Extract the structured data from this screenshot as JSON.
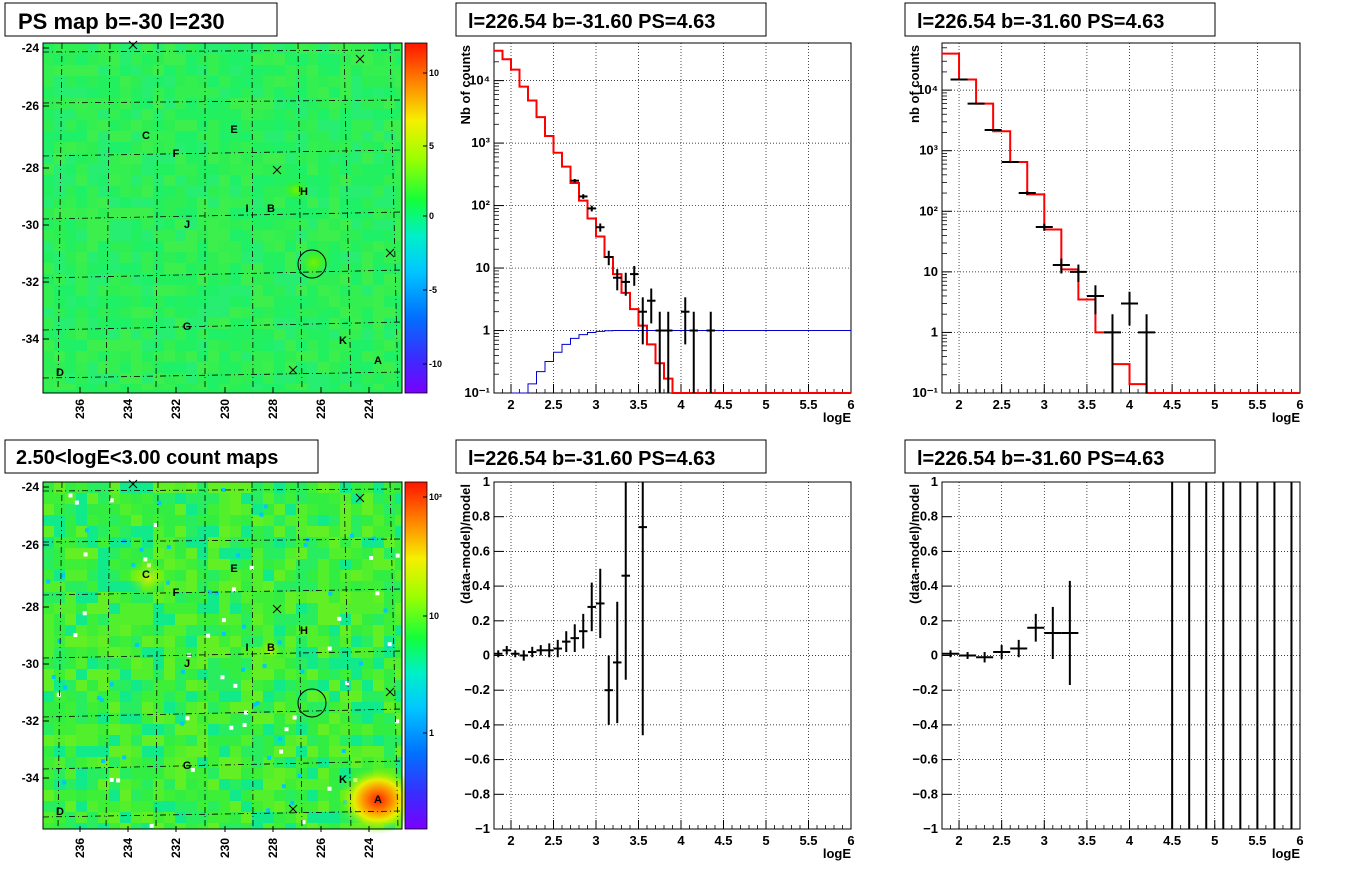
{
  "map_top": {
    "title": "PS map b=-30 l=230",
    "xticks": [
      "236",
      "234",
      "232",
      "230",
      "228",
      "226",
      "224"
    ],
    "yticks": [
      "-24",
      "-26",
      "-28",
      "-30",
      "-32",
      "-34"
    ],
    "palette_labels": [
      "10",
      "5",
      "0",
      "-5",
      "-10"
    ],
    "sources": [
      "C",
      "E",
      "F",
      "H",
      "I",
      "B",
      "J",
      "G",
      "K",
      "A",
      "D"
    ]
  },
  "map_bottom": {
    "title": "2.50<logE<3.00 count maps",
    "xticks": [
      "236",
      "234",
      "232",
      "230",
      "228",
      "226",
      "224"
    ],
    "yticks": [
      "-24",
      "-26",
      "-28",
      "-30",
      "-32",
      "-34"
    ],
    "palette_labels": [
      "10²",
      "10",
      "1"
    ],
    "sources": [
      "C",
      "E",
      "F",
      "H",
      "I",
      "B",
      "J",
      "G",
      "K",
      "A",
      "D"
    ]
  },
  "chart_data": [
    {
      "type": "line",
      "title": "l=226.54 b=-31.60 PS=4.63",
      "xlabel": "logE",
      "ylabel": "Nb of counts",
      "yscale": "log",
      "xlim": [
        1.8,
        6
      ],
      "ylim": [
        0.1,
        40000
      ],
      "xticks": [
        "2",
        "2.5",
        "3",
        "3.5",
        "4",
        "4.5",
        "5",
        "5.5",
        "6"
      ],
      "yticks": [
        "10⁻¹",
        "1",
        "10",
        "10²",
        "10³",
        "10⁴"
      ],
      "grid": true,
      "series": [
        {
          "kind": "step",
          "edges": [
            1.8,
            1.9,
            2.0,
            2.1,
            2.2,
            2.3,
            2.4,
            2.5,
            2.6,
            2.7,
            2.8,
            2.9,
            3.0,
            3.1,
            3.2,
            3.3,
            3.4,
            3.5,
            3.6,
            3.7,
            3.8,
            3.9,
            4.0,
            4.1,
            6.0
          ],
          "values": [
            30000,
            22000,
            15000,
            8000,
            4800,
            2600,
            1300,
            700,
            420,
            230,
            120,
            62,
            32,
            15,
            8,
            4,
            2.2,
            1.2,
            0.6,
            0.3,
            0.17,
            0.1,
            0.1,
            0.1
          ],
          "color": "#ff0000"
        },
        {
          "kind": "step",
          "edges": [
            2.0,
            2.1,
            2.2,
            2.3,
            2.4,
            2.5,
            2.6,
            2.7,
            2.8,
            2.9,
            3.0,
            3.1,
            3.2,
            6.0
          ],
          "values": [
            0.05,
            0.09,
            0.14,
            0.22,
            0.32,
            0.45,
            0.6,
            0.75,
            0.86,
            0.93,
            0.97,
            0.99,
            1.0
          ],
          "color": "#0000cc"
        },
        {
          "kind": "errorbar",
          "x": [
            2.75,
            2.85,
            2.95,
            3.05,
            3.15,
            3.25,
            3.35,
            3.45,
            3.55,
            3.65,
            3.75,
            3.85,
            4.05,
            4.15,
            4.35
          ],
          "y": [
            250,
            140,
            90,
            45,
            15,
            7,
            6,
            8,
            2,
            3,
            1,
            1,
            2,
            1,
            1
          ],
          "yerr": [
            [
              16,
              12,
              9.5,
              6.7,
              3.9,
              2.6,
              2.4,
              2.8,
              1.4,
              1.7,
              0.9,
              0.9,
              1.4,
              0.9,
              0.9
            ],
            [
              16,
              12,
              9.5,
              6.7,
              3.9,
              2.6,
              2.4,
              2.8,
              1.4,
              1.7,
              1,
              1,
              1.4,
              1,
              1
            ]
          ],
          "xerr": 0.05,
          "color": "#000000"
        }
      ]
    },
    {
      "type": "line",
      "title": "l=226.54 b=-31.60 PS=4.63",
      "xlabel": "logE",
      "ylabel": "nb of counts",
      "yscale": "log",
      "xlim": [
        1.8,
        6
      ],
      "ylim": [
        0.1,
        60000
      ],
      "xticks": [
        "2",
        "2.5",
        "3",
        "3.5",
        "4",
        "4.5",
        "5",
        "5.5",
        "6"
      ],
      "yticks": [
        "10⁻¹",
        "1",
        "10",
        "10²",
        "10³",
        "10⁴"
      ],
      "grid": true,
      "series": [
        {
          "kind": "step",
          "edges": [
            1.8,
            2.0,
            2.2,
            2.4,
            2.6,
            2.8,
            3.0,
            3.2,
            3.4,
            3.6,
            3.8,
            4.0,
            4.2,
            6.0
          ],
          "values": [
            40000,
            15000,
            6000,
            2100,
            650,
            190,
            50,
            11,
            3.5,
            1,
            0.3,
            0.14,
            0.1
          ],
          "color": "#ff0000"
        },
        {
          "kind": "errorbar",
          "x": [
            2.0,
            2.2,
            2.4,
            2.6,
            2.8,
            3.0,
            3.2,
            3.4,
            3.6,
            3.8,
            4.0,
            4.2
          ],
          "y": [
            15000,
            6000,
            2200,
            650,
            200,
            55,
            13,
            10,
            4,
            1,
            3,
            1
          ],
          "yerr": [
            [
              122,
              77,
              47,
              25,
              14,
              7.4,
              3.6,
              3.2,
              2,
              0.9,
              1.7,
              0.9
            ],
            [
              122,
              77,
              47,
              25,
              14,
              7.4,
              3.6,
              3.2,
              2,
              1,
              1.7,
              1
            ]
          ],
          "xerr": 0.1,
          "color": "#000000"
        }
      ]
    },
    {
      "type": "scatter",
      "title": "l=226.54 b=-31.60 PS=4.63",
      "xlabel": "logE",
      "ylabel": "(data-model)/model",
      "xlim": [
        1.8,
        6
      ],
      "ylim": [
        -1,
        1
      ],
      "xticks": [
        "2",
        "2.5",
        "3",
        "3.5",
        "4",
        "4.5",
        "5",
        "5.5",
        "6"
      ],
      "yticks": [
        "−1",
        "−0.8",
        "−0.6",
        "−0.4",
        "−0.2",
        "0",
        "0.2",
        "0.4",
        "0.6",
        "0.8",
        "1"
      ],
      "grid": true,
      "series": [
        {
          "kind": "errorbar",
          "x": [
            1.85,
            1.95,
            2.05,
            2.15,
            2.25,
            2.35,
            2.45,
            2.55,
            2.65,
            2.75,
            2.85,
            2.95,
            3.05,
            3.15,
            3.25,
            3.35,
            3.55
          ],
          "y": [
            0.01,
            0.03,
            0.01,
            0.0,
            0.02,
            0.03,
            0.03,
            0.04,
            0.08,
            0.1,
            0.14,
            0.28,
            0.3,
            -0.2,
            -0.04,
            0.46,
            0.74
          ],
          "yerr": [
            0.02,
            0.025,
            0.02,
            0.03,
            0.03,
            0.03,
            0.04,
            0.05,
            0.06,
            0.08,
            0.1,
            0.14,
            0.2,
            0.2,
            0.35,
            0.6,
            1.2
          ],
          "xerr": 0.05,
          "color": "#000000"
        }
      ]
    },
    {
      "type": "scatter",
      "title": "l=226.54 b=-31.60 PS=4.63",
      "xlabel": "logE",
      "ylabel": "(data-model)/model",
      "xlim": [
        1.8,
        6
      ],
      "ylim": [
        -1,
        1
      ],
      "xticks": [
        "2",
        "2.5",
        "3",
        "3.5",
        "4",
        "4.5",
        "5",
        "5.5",
        "6"
      ],
      "yticks": [
        "−1",
        "−0.8",
        "−0.6",
        "−0.4",
        "−0.2",
        "0",
        "0.2",
        "0.4",
        "0.6",
        "0.8",
        "1"
      ],
      "grid": true,
      "series": [
        {
          "kind": "errorbar",
          "x": [
            1.9,
            2.1,
            2.3,
            2.5,
            2.7,
            2.9,
            3.1,
            3.3
          ],
          "y": [
            0.01,
            0.0,
            -0.01,
            0.02,
            0.04,
            0.16,
            0.13,
            0.13
          ],
          "yerr": [
            0.02,
            0.02,
            0.03,
            0.04,
            0.05,
            0.08,
            0.15,
            0.3
          ],
          "xerr": 0.1,
          "color": "#000000"
        },
        {
          "kind": "vlines",
          "x": [
            4.5,
            4.7,
            4.9,
            5.1,
            5.3,
            5.5,
            5.7,
            5.9
          ],
          "color": "#000000"
        }
      ]
    }
  ]
}
